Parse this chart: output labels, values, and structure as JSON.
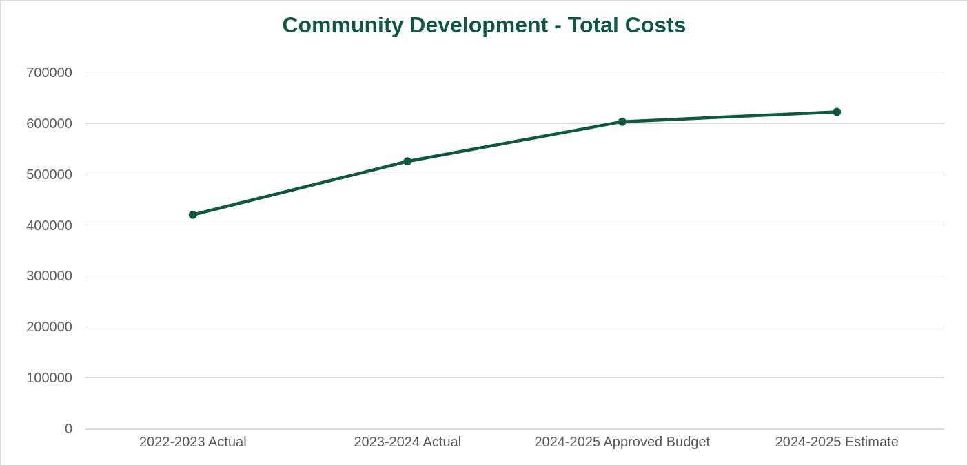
{
  "chart_data": {
    "type": "line",
    "title": "Community Development - Total Costs",
    "categories": [
      "2022-2023 Actual",
      "2023-2024 Actual",
      "2024-2025 Approved Budget",
      "2024-2025 Estimate"
    ],
    "series": [
      {
        "color": "#0e5a3e",
        "values": [
          420000,
          525000,
          603000,
          622000
        ]
      }
    ],
    "ylim": [
      0,
      700000
    ],
    "yticks": [
      0,
      100000,
      200000,
      300000,
      400000,
      500000,
      600000,
      700000
    ],
    "grid": "y",
    "marker": "circle",
    "line_style": "solid"
  }
}
